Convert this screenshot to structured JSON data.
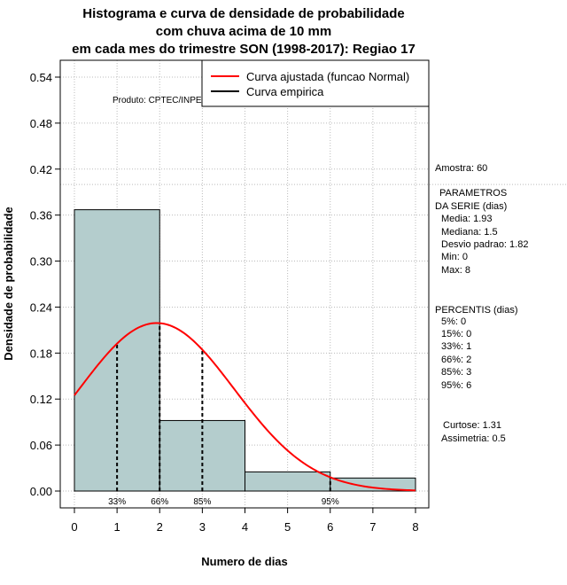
{
  "chart_data": {
    "type": "bar",
    "title_lines": [
      "Histograma e curva de densidade de probabilidade",
      "com chuva acima de 10 mm",
      "em cada mes do trimestre SON (1998-2017): Regiao 17"
    ],
    "xlabel": "Numero de dias",
    "ylabel": "Densidade de probabilidade",
    "xlim": [
      0,
      8
    ],
    "ylim": [
      0,
      0.54
    ],
    "x_ticks": [
      "0",
      "1",
      "2",
      "3",
      "4",
      "5",
      "6",
      "7",
      "8"
    ],
    "y_ticks": [
      "0.00",
      "0.06",
      "0.12",
      "0.18",
      "0.24",
      "0.30",
      "0.36",
      "0.42",
      "0.48",
      "0.54"
    ],
    "bins": [
      {
        "x0": 0,
        "x1": 2,
        "density": 0.367
      },
      {
        "x0": 2,
        "x1": 4,
        "density": 0.092
      },
      {
        "x0": 4,
        "x1": 6,
        "density": 0.025
      },
      {
        "x0": 6,
        "x1": 8,
        "density": 0.017
      }
    ],
    "reference_line_y": 0.4,
    "normal_fit": {
      "mean": 1.93,
      "sd": 1.82,
      "x_from": 0,
      "x_to": 8
    },
    "percentile_markers": [
      {
        "x": 1,
        "label": "33%"
      },
      {
        "x": 2,
        "label": "66%"
      },
      {
        "x": 3,
        "label": "85%"
      },
      {
        "x": 6,
        "label": "95%"
      }
    ],
    "legend": [
      {
        "label": "Curva ajustada (funcao Normal)",
        "color": "#ff0000"
      },
      {
        "label": "Curva empirica",
        "color": "#000000"
      }
    ],
    "credit": "Produto: CPTEC/INPE",
    "colors": {
      "bar_fill": "#b4cdcd",
      "fit_line": "#ff0000",
      "grid": "#bbbbbb"
    }
  },
  "side_panel": {
    "amostra": "Amostra: 60",
    "parametros_title_1": "PARAMETROS",
    "parametros_title_2": "DA SERIE (dias)",
    "media": "Media: 1.93",
    "mediana": "Mediana: 1.5",
    "desvio": "Desvio padrao: 1.82",
    "min": "Min: 0",
    "max": "Max: 8",
    "percentis_title": "PERCENTIS (dias)",
    "p5": "5%: 0",
    "p15": "15%: 0",
    "p33": "33%: 1",
    "p66": "66%: 2",
    "p85": "85%: 3",
    "p95": "95%: 6",
    "curtose": "Curtose: 1.31",
    "assimetria": "Assimetria: 0.5"
  }
}
